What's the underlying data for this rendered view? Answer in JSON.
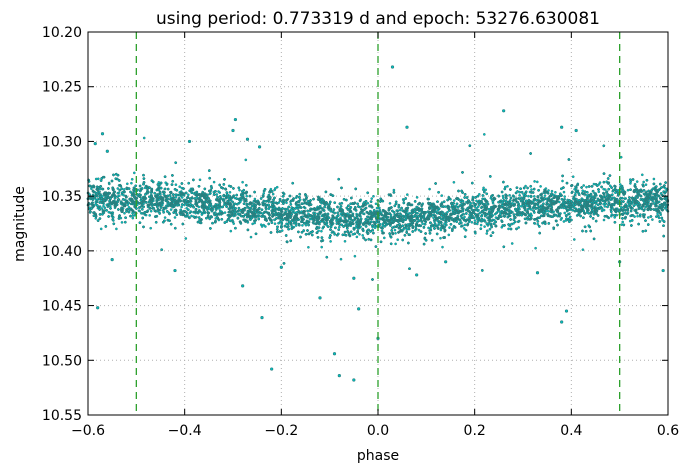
{
  "chart_data": {
    "type": "scatter",
    "title": "using period: 0.773319 d and epoch: 53276.630081",
    "xlabel": "phase",
    "ylabel": "magnitude",
    "xlim": [
      -0.6,
      0.6
    ],
    "ylim": [
      10.55,
      10.2
    ],
    "y_inverted": true,
    "grid": true,
    "x_ticks": [
      -0.6,
      -0.4,
      -0.2,
      0.0,
      0.2,
      0.4,
      0.6
    ],
    "x_tick_labels": [
      "−0.6",
      "−0.4",
      "−0.2",
      "0.0",
      "0.2",
      "0.4",
      "0.6"
    ],
    "y_ticks": [
      10.2,
      10.25,
      10.3,
      10.35,
      10.4,
      10.45,
      10.5,
      10.55
    ],
    "y_tick_labels": [
      "10.20",
      "10.25",
      "10.30",
      "10.35",
      "10.40",
      "10.45",
      "10.50",
      "10.55"
    ],
    "marker_color": "#00bfbf",
    "marker_edge_color": "#2a7f7f",
    "reference_line_color": "#2ca02c",
    "reference_lines_x": [
      -0.5,
      0.0,
      0.5
    ],
    "band": {
      "description": "dense cloud of points, median magnitude as function of phase",
      "phase": [
        -0.6,
        -0.5,
        -0.4,
        -0.3,
        -0.2,
        -0.1,
        0.0,
        0.1,
        0.2,
        0.3,
        0.4,
        0.5,
        0.6
      ],
      "median_mag": [
        10.352,
        10.353,
        10.356,
        10.359,
        10.364,
        10.369,
        10.371,
        10.368,
        10.364,
        10.36,
        10.357,
        10.355,
        10.353
      ],
      "point_count": 9000
    },
    "outliers": [
      {
        "x": 0.03,
        "y": 10.232
      },
      {
        "x": 0.26,
        "y": 10.272
      },
      {
        "x": -0.295,
        "y": 10.28
      },
      {
        "x": -0.3,
        "y": 10.29
      },
      {
        "x": 0.38,
        "y": 10.287
      },
      {
        "x": 0.06,
        "y": 10.287
      },
      {
        "x": -0.57,
        "y": 10.293
      },
      {
        "x": -0.27,
        "y": 10.298
      },
      {
        "x": -0.585,
        "y": 10.302
      },
      {
        "x": 0.41,
        "y": 10.29
      },
      {
        "x": -0.56,
        "y": 10.309
      },
      {
        "x": -0.39,
        "y": 10.3
      },
      {
        "x": -0.245,
        "y": 10.305
      },
      {
        "x": -0.24,
        "y": 10.461
      },
      {
        "x": -0.28,
        "y": 10.432
      },
      {
        "x": -0.2,
        "y": 10.415
      },
      {
        "x": -0.22,
        "y": 10.508
      },
      {
        "x": -0.12,
        "y": 10.443
      },
      {
        "x": -0.09,
        "y": 10.494
      },
      {
        "x": -0.08,
        "y": 10.514
      },
      {
        "x": -0.05,
        "y": 10.518
      },
      {
        "x": -0.04,
        "y": 10.453
      },
      {
        "x": 0.0,
        "y": 10.48
      },
      {
        "x": 0.38,
        "y": 10.465
      },
      {
        "x": 0.39,
        "y": 10.455
      },
      {
        "x": -0.58,
        "y": 10.452
      },
      {
        "x": -0.42,
        "y": 10.418
      },
      {
        "x": 0.14,
        "y": 10.41
      },
      {
        "x": 0.59,
        "y": 10.418
      },
      {
        "x": 0.33,
        "y": 10.42
      },
      {
        "x": 0.08,
        "y": 10.422
      },
      {
        "x": -0.55,
        "y": 10.408
      },
      {
        "x": 0.5,
        "y": 10.41
      },
      {
        "x": -0.05,
        "y": 10.425
      }
    ]
  }
}
